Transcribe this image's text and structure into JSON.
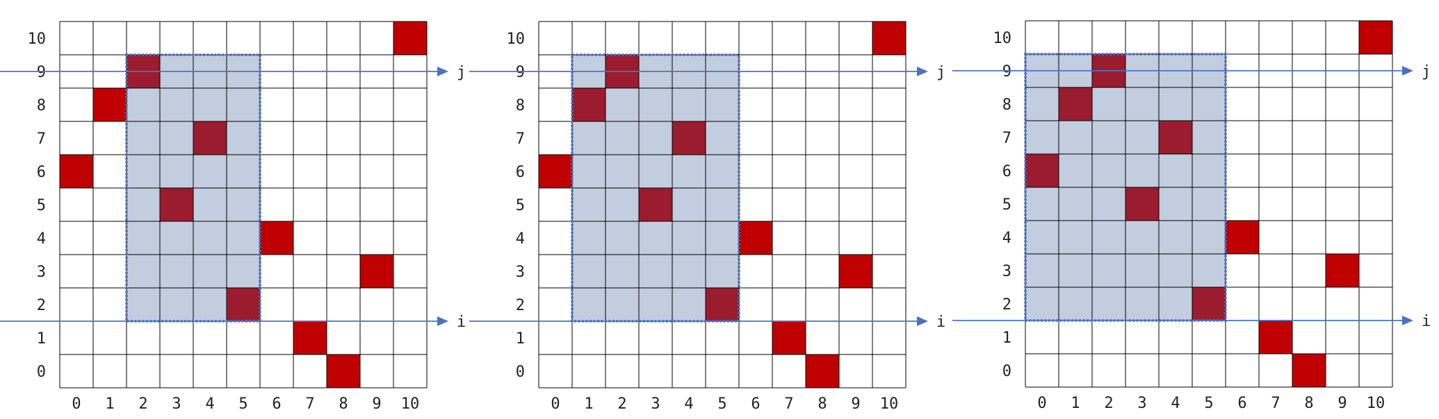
{
  "colors": {
    "grid_line": "#000000",
    "highlight_fill": "#c3cde0",
    "highlight_border": "#4a72c4",
    "point_bright": "#c00000",
    "point_dark": "#9b1c2e",
    "guide_line": "#4a72c4"
  },
  "panels": [
    {
      "x_ticks": [
        "0",
        "1",
        "2",
        "3",
        "4",
        "5",
        "6",
        "7",
        "8",
        "9",
        "10"
      ],
      "y_ticks": [
        "0",
        "1",
        "2",
        "3",
        "4",
        "5",
        "6",
        "7",
        "8",
        "9",
        "10"
      ],
      "highlight": {
        "col_from": 2,
        "col_to": 5,
        "row_from": 2,
        "row_to": 9
      },
      "points": [
        {
          "col": 0,
          "row": 6,
          "tone": "bright"
        },
        {
          "col": 1,
          "row": 8,
          "tone": "bright"
        },
        {
          "col": 2,
          "row": 9,
          "tone": "dark"
        },
        {
          "col": 3,
          "row": 5,
          "tone": "dark"
        },
        {
          "col": 4,
          "row": 7,
          "tone": "dark"
        },
        {
          "col": 5,
          "row": 2,
          "tone": "dark"
        },
        {
          "col": 6,
          "row": 4,
          "tone": "bright"
        },
        {
          "col": 7,
          "row": 1,
          "tone": "bright"
        },
        {
          "col": 8,
          "row": 0,
          "tone": "bright"
        },
        {
          "col": 9,
          "row": 3,
          "tone": "bright"
        },
        {
          "col": 10,
          "row": 10,
          "tone": "bright"
        }
      ],
      "lines": [
        {
          "label": "j",
          "level": 9.5
        },
        {
          "label": "i",
          "level": 2.0
        }
      ]
    },
    {
      "x_ticks": [
        "0",
        "1",
        "2",
        "3",
        "4",
        "5",
        "6",
        "7",
        "8",
        "9",
        "10"
      ],
      "y_ticks": [
        "0",
        "1",
        "2",
        "3",
        "4",
        "5",
        "6",
        "7",
        "8",
        "9",
        "10"
      ],
      "highlight": {
        "col_from": 1,
        "col_to": 5,
        "row_from": 2,
        "row_to": 9
      },
      "points": [
        {
          "col": 0,
          "row": 6,
          "tone": "bright"
        },
        {
          "col": 1,
          "row": 8,
          "tone": "dark"
        },
        {
          "col": 2,
          "row": 9,
          "tone": "dark"
        },
        {
          "col": 3,
          "row": 5,
          "tone": "dark"
        },
        {
          "col": 4,
          "row": 7,
          "tone": "dark"
        },
        {
          "col": 5,
          "row": 2,
          "tone": "dark"
        },
        {
          "col": 6,
          "row": 4,
          "tone": "bright"
        },
        {
          "col": 7,
          "row": 1,
          "tone": "bright"
        },
        {
          "col": 8,
          "row": 0,
          "tone": "bright"
        },
        {
          "col": 9,
          "row": 3,
          "tone": "bright"
        },
        {
          "col": 10,
          "row": 10,
          "tone": "bright"
        }
      ],
      "lines": [
        {
          "label": "j",
          "level": 9.5
        },
        {
          "label": "i",
          "level": 2.0
        }
      ]
    },
    {
      "x_ticks": [
        "0",
        "1",
        "2",
        "3",
        "4",
        "5",
        "6",
        "7",
        "8",
        "9",
        "10"
      ],
      "y_ticks": [
        "0",
        "1",
        "2",
        "3",
        "4",
        "5",
        "6",
        "7",
        "8",
        "9",
        "10"
      ],
      "highlight": {
        "col_from": 0,
        "col_to": 5,
        "row_from": 2,
        "row_to": 9
      },
      "points": [
        {
          "col": 0,
          "row": 6,
          "tone": "dark"
        },
        {
          "col": 1,
          "row": 8,
          "tone": "dark"
        },
        {
          "col": 2,
          "row": 9,
          "tone": "dark"
        },
        {
          "col": 3,
          "row": 5,
          "tone": "dark"
        },
        {
          "col": 4,
          "row": 7,
          "tone": "dark"
        },
        {
          "col": 5,
          "row": 2,
          "tone": "dark"
        },
        {
          "col": 6,
          "row": 4,
          "tone": "bright"
        },
        {
          "col": 7,
          "row": 1,
          "tone": "bright"
        },
        {
          "col": 8,
          "row": 0,
          "tone": "bright"
        },
        {
          "col": 9,
          "row": 3,
          "tone": "bright"
        },
        {
          "col": 10,
          "row": 10,
          "tone": "bright"
        }
      ],
      "lines": [
        {
          "label": "j",
          "level": 9.5
        },
        {
          "label": "i",
          "level": 2.0
        }
      ]
    }
  ]
}
